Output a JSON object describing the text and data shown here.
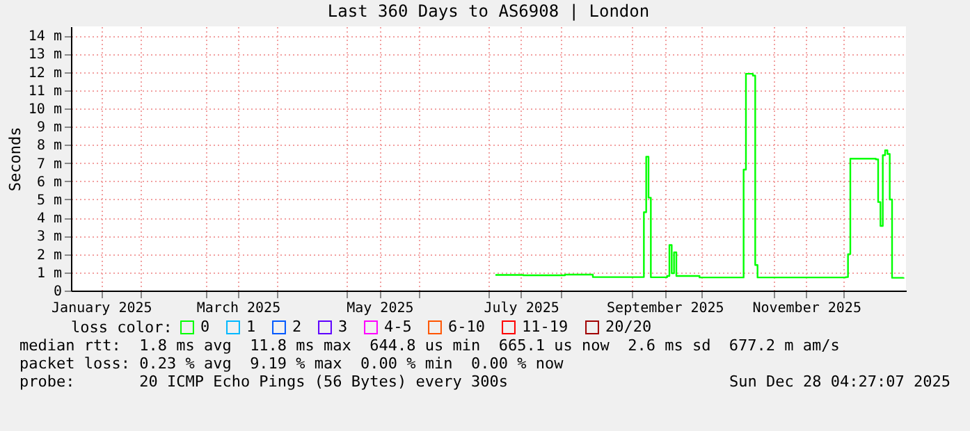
{
  "chart_data": {
    "type": "step",
    "title": "Last 360 Days to AS6908 | London",
    "ylabel": "Seconds",
    "x": [
      "2025-07-04",
      "2025-07-16",
      "2025-08-03",
      "2025-08-15",
      "2025-09-05",
      "2025-09-06",
      "2025-09-07",
      "2025-09-08",
      "2025-09-09",
      "2025-09-15",
      "2025-09-16",
      "2025-09-17",
      "2025-09-18",
      "2025-09-19",
      "2025-09-20",
      "2025-09-30",
      "2025-10-18",
      "2025-10-19",
      "2025-10-20",
      "2025-10-23",
      "2025-10-24",
      "2025-10-25",
      "2025-12-02",
      "2025-12-03",
      "2025-12-04",
      "2025-12-15",
      "2025-12-16",
      "2025-12-17",
      "2025-12-18",
      "2025-12-19",
      "2025-12-20",
      "2025-12-21",
      "2025-12-22",
      "2025-12-27"
    ],
    "series": [
      {
        "name": "0",
        "color": "#00ff00",
        "values": [
          0.86,
          0.84,
          0.88,
          0.74,
          0.74,
          4.3,
          7.35,
          5.1,
          0.73,
          0.73,
          0.8,
          2.5,
          0.95,
          2.1,
          0.8,
          0.72,
          0.72,
          6.64,
          11.9,
          11.8,
          1.4,
          0.72,
          0.74,
          2.0,
          7.24,
          7.2,
          4.86,
          3.55,
          7.43,
          7.7,
          7.5,
          5.0,
          0.7,
          0.72
        ]
      },
      {
        "name": "1",
        "color": "#00b8ff",
        "values": [
          null,
          null,
          null,
          null,
          null,
          null,
          null,
          null,
          null,
          null,
          null,
          null,
          null,
          null,
          null,
          null,
          null,
          null,
          null,
          null,
          null,
          null,
          null,
          null,
          null,
          null,
          null,
          null,
          null,
          null,
          null,
          null,
          null,
          null
        ]
      },
      {
        "name": "2",
        "color": "#0059ff",
        "values": [
          null,
          null,
          null,
          null,
          null,
          null,
          null,
          null,
          null,
          null,
          null,
          null,
          null,
          null,
          null,
          null,
          null,
          null,
          null,
          null,
          null,
          null,
          null,
          null,
          null,
          null,
          null,
          null,
          null,
          null,
          null,
          null,
          null,
          null
        ]
      },
      {
        "name": "3",
        "color": "#5e00ff",
        "values": [
          null,
          null,
          null,
          null,
          null,
          null,
          null,
          null,
          null,
          null,
          null,
          null,
          null,
          null,
          null,
          null,
          null,
          null,
          null,
          null,
          null,
          null,
          null,
          null,
          null,
          null,
          null,
          null,
          null,
          null,
          null,
          null,
          null,
          null
        ]
      },
      {
        "name": "4-5",
        "color": "#ff00ff",
        "values": [
          null,
          null,
          null,
          null,
          null,
          null,
          null,
          null,
          null,
          null,
          null,
          null,
          null,
          null,
          null,
          null,
          null,
          null,
          null,
          null,
          null,
          null,
          null,
          null,
          null,
          null,
          null,
          null,
          null,
          null,
          null,
          null,
          null,
          null
        ]
      },
      {
        "name": "6-10",
        "color": "#ff5500",
        "values": [
          null,
          null,
          null,
          null,
          null,
          null,
          null,
          null,
          null,
          null,
          null,
          null,
          null,
          null,
          null,
          null,
          null,
          null,
          null,
          null,
          null,
          null,
          null,
          null,
          null,
          null,
          null,
          null,
          null,
          null,
          null,
          null,
          null,
          null
        ]
      },
      {
        "name": "11-19",
        "color": "#ff0000",
        "values": [
          null,
          null,
          null,
          null,
          null,
          null,
          null,
          null,
          null,
          null,
          null,
          null,
          null,
          null,
          null,
          null,
          null,
          null,
          null,
          null,
          null,
          null,
          null,
          null,
          null,
          null,
          null,
          null,
          null,
          null,
          null,
          null,
          null,
          null
        ]
      },
      {
        "name": "20/20",
        "color": "#a10000",
        "values": [
          null,
          null,
          null,
          null,
          null,
          null,
          null,
          null,
          null,
          null,
          null,
          null,
          null,
          null,
          null,
          null,
          null,
          null,
          null,
          null,
          null,
          null,
          null,
          null,
          null,
          null,
          null,
          null,
          null,
          null,
          null,
          null,
          null,
          null
        ]
      }
    ],
    "legend_title": "loss color:",
    "legend": "bottom",
    "grid": true,
    "line_style": "solid",
    "xlim": [
      "2025-01-02",
      "2025-12-28"
    ],
    "xticks": [
      {
        "value": "2025-01-15",
        "label": "January 2025"
      },
      {
        "value": "2025-02-01",
        "label": null
      },
      {
        "value": "2025-03-01",
        "label": null
      },
      {
        "value": "2025-03-15",
        "label": "March 2025"
      },
      {
        "value": "2025-04-01",
        "label": null
      },
      {
        "value": "2025-05-01",
        "label": null
      },
      {
        "value": "2025-05-15",
        "label": "May 2025"
      },
      {
        "value": "2025-06-01",
        "label": null
      },
      {
        "value": "2025-07-01",
        "label": null
      },
      {
        "value": "2025-07-15",
        "label": "July 2025"
      },
      {
        "value": "2025-08-01",
        "label": null
      },
      {
        "value": "2025-09-01",
        "label": null
      },
      {
        "value": "2025-09-15",
        "label": "September 2025"
      },
      {
        "value": "2025-10-01",
        "label": null
      },
      {
        "value": "2025-11-01",
        "label": null
      },
      {
        "value": "2025-11-15",
        "label": "November 2025"
      },
      {
        "value": "2025-12-01",
        "label": null
      }
    ],
    "ylim": [
      0,
      14.5
    ],
    "yticks": [
      0,
      {
        "value": 1,
        "label": "1 m"
      },
      {
        "value": 2,
        "label": "2 m"
      },
      {
        "value": 3,
        "label": "3 m"
      },
      {
        "value": 4,
        "label": "4 m"
      },
      {
        "value": 5,
        "label": "5 m"
      },
      {
        "value": 6,
        "label": "6 m"
      },
      {
        "value": 7,
        "label": "7 m"
      },
      {
        "value": 8,
        "label": "8 m"
      },
      {
        "value": 9,
        "label": "9 m"
      },
      {
        "value": 10,
        "label": "10 m"
      },
      {
        "value": 11,
        "label": "11 m"
      },
      {
        "value": 12,
        "label": "12 m"
      },
      {
        "value": 13,
        "label": "13 m"
      },
      {
        "value": 14,
        "label": "14 m"
      }
    ],
    "annotations": [
      "median rtt:  1.8 ms avg  11.8 ms max  644.8 us min  665.1 us now  2.6 ms sd  677.2 m am/s",
      "packet loss: 0.23 % avg  9.19 % max  0.00 % min  0.00 % now",
      "probe:       20 ICMP Echo Pings (56 Bytes) every 300s",
      "Sun Dec 28 04:27:07 2025"
    ]
  }
}
